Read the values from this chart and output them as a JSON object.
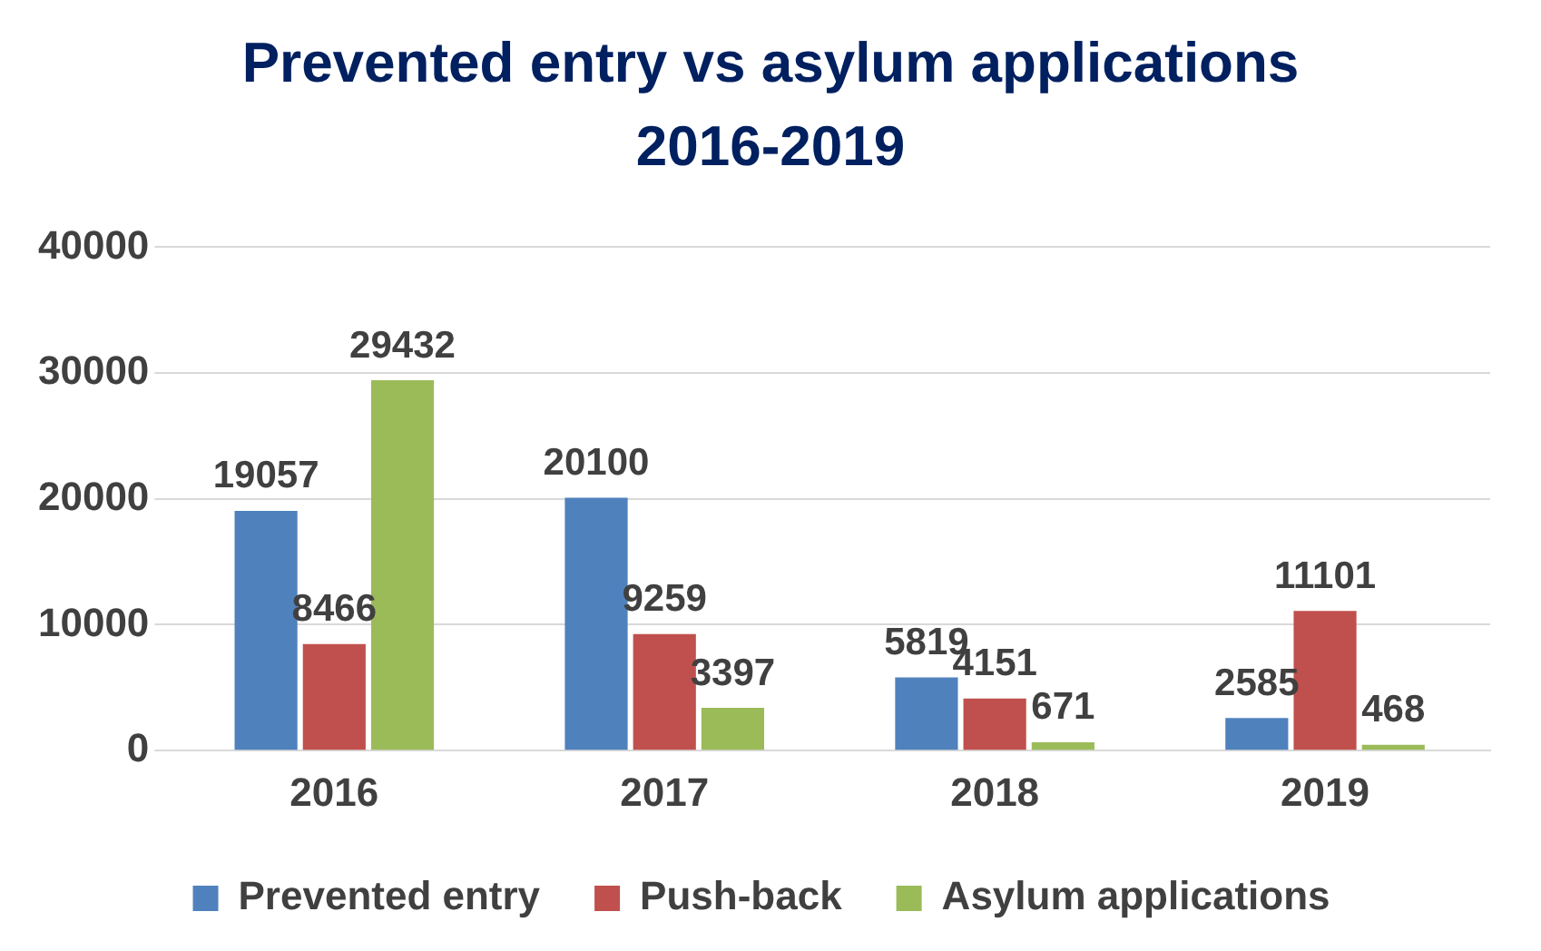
{
  "chart_data": {
    "type": "bar",
    "title": "Prevented entry vs asylum applications 2016-2019",
    "categories": [
      "2016",
      "2017",
      "2018",
      "2019"
    ],
    "series": [
      {
        "name": "Prevented entry",
        "color": "#4f81bd",
        "values": [
          19057,
          20100,
          5819,
          2585
        ]
      },
      {
        "name": "Push-back",
        "color": "#c0504d",
        "values": [
          8466,
          9259,
          4151,
          11101
        ]
      },
      {
        "name": "Asylum applications",
        "color": "#9bbb59",
        "values": [
          29432,
          3397,
          671,
          468
        ]
      }
    ],
    "ylim": [
      0,
      40000
    ],
    "yticks": [
      0,
      10000,
      20000,
      30000,
      40000
    ],
    "grid": "y",
    "legend": "bottom",
    "data_labels": true
  }
}
